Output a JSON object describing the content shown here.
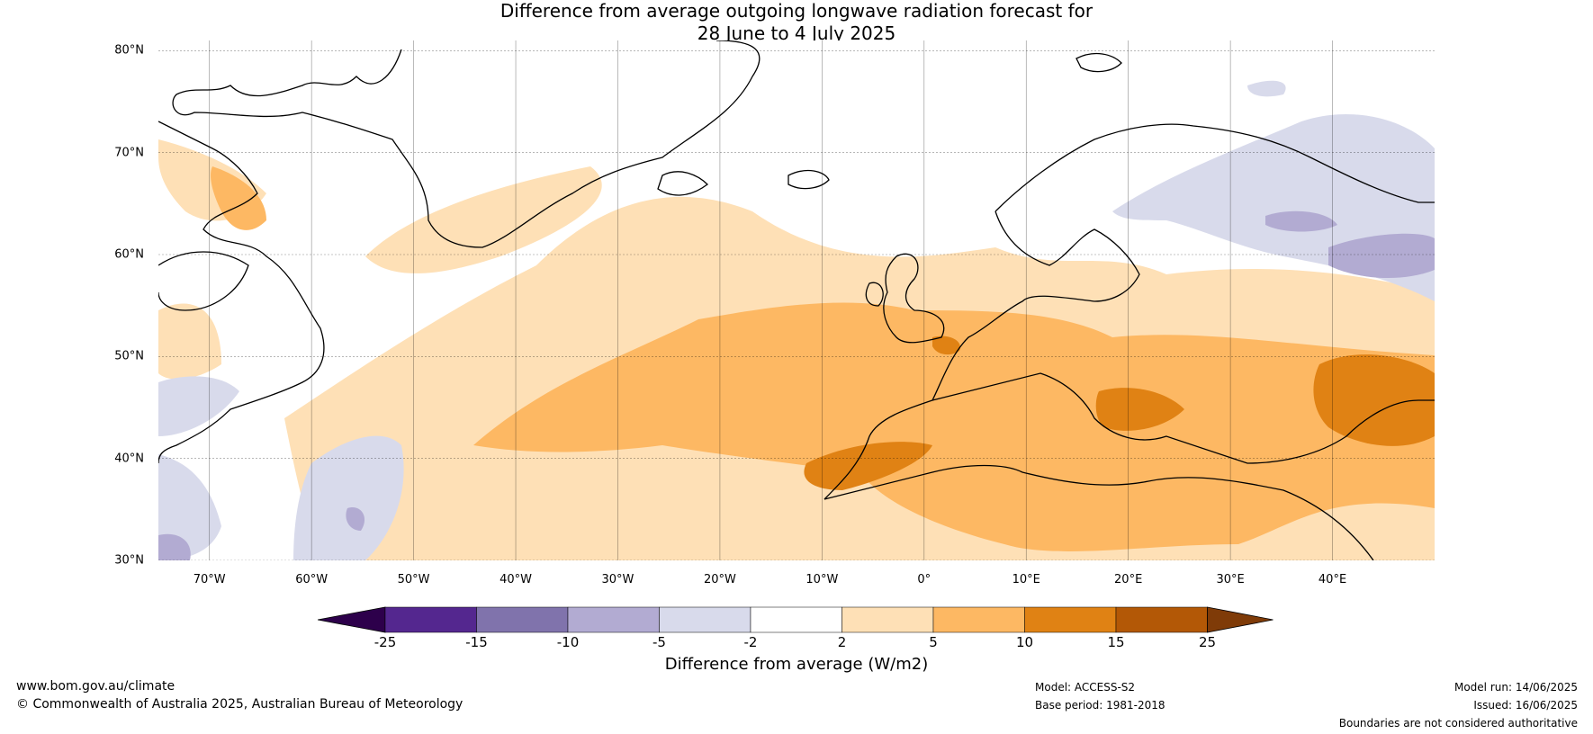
{
  "title_line1": "Difference from average outgoing longwave radiation forecast for",
  "title_line2": "28 June to 4 July 2025",
  "map": {
    "lat_labels": [
      "80°N",
      "70°N",
      "60°N",
      "50°N",
      "40°N",
      "30°N"
    ],
    "lat_values": [
      80,
      70,
      60,
      50,
      40,
      30
    ],
    "lon_labels": [
      "70°W",
      "60°W",
      "50°W",
      "40°W",
      "30°W",
      "20°W",
      "10°W",
      "0°",
      "10°E",
      "20°E",
      "30°E",
      "40°E"
    ],
    "lon_values": [
      -70,
      -60,
      -50,
      -40,
      -30,
      -20,
      -10,
      0,
      10,
      20,
      30,
      40
    ],
    "extent": {
      "lon_min": -75,
      "lon_max": 50,
      "lat_min": 30,
      "lat_max": 81
    }
  },
  "colorbar": {
    "ticks": [
      "-25",
      "-15",
      "-10",
      "-5",
      "-2",
      "2",
      "5",
      "10",
      "15",
      "25"
    ],
    "colors": [
      "#54278f",
      "#8073ac",
      "#b2abd2",
      "#d8daeb",
      "#ffffff",
      "#fee0b6",
      "#fdb863",
      "#e08214",
      "#b35806"
    ],
    "under_color": "#2d004b",
    "over_color": "#7f3b08",
    "label": "Difference from average (W/m2)"
  },
  "footer": {
    "url": "www.bom.gov.au/climate",
    "copyright": "© Commonwealth of Australia 2025, Australian Bureau of Meteorology",
    "model": "Model: ACCESS-S2",
    "base_period": "Base period: 1981-2018",
    "model_run": "Model run: 14/06/2025",
    "issued": "Issued: 16/06/2025",
    "disclaimer": "Boundaries are not considered authoritative"
  }
}
